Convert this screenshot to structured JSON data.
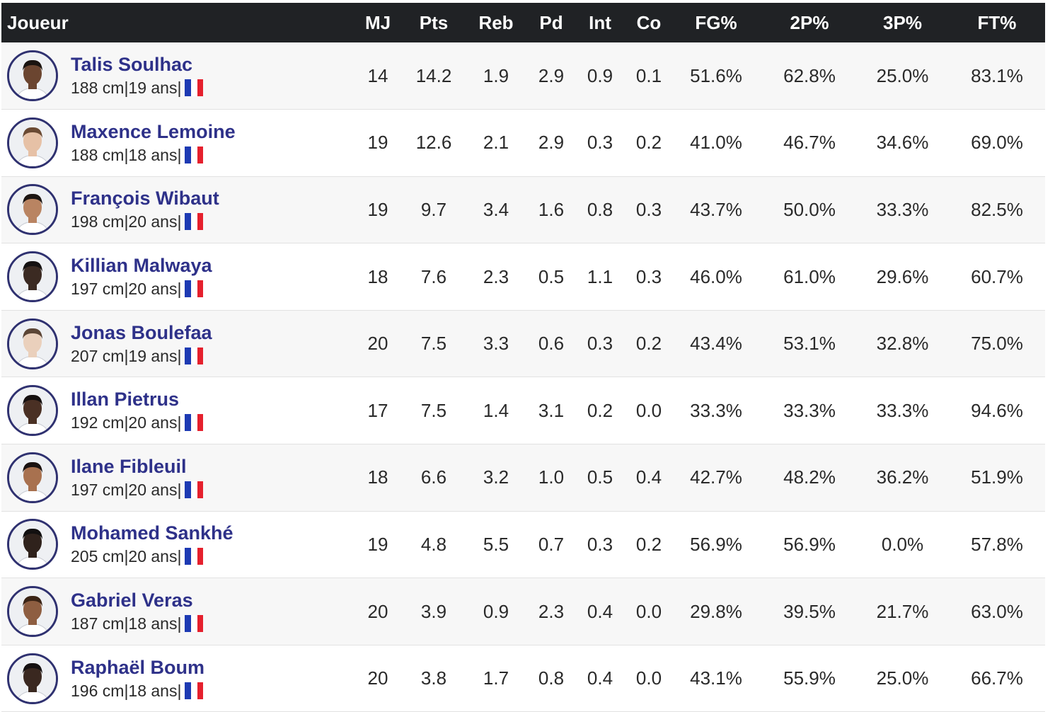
{
  "table": {
    "headers": [
      "Joueur",
      "MJ",
      "Pts",
      "Reb",
      "Pd",
      "Int",
      "Co",
      "FG%",
      "2P%",
      "3P%",
      "FT%"
    ],
    "separator": "|",
    "colors": {
      "header_bg": "#202225",
      "name": "#2e3189",
      "flag_blue": "#1d3ab3",
      "flag_white": "#ffffff",
      "flag_red": "#e5202d"
    },
    "rows": [
      {
        "name": "Talis Soulhac",
        "height": "188 cm",
        "age": "19 ans",
        "skin": "#6b4530",
        "hair": "#1a1410",
        "icon": "france-flag-icon",
        "stats": [
          "14",
          "14.2",
          "1.9",
          "2.9",
          "0.9",
          "0.1",
          "51.6%",
          "62.8%",
          "25.0%",
          "83.1%"
        ]
      },
      {
        "name": "Maxence Lemoine",
        "height": "188 cm",
        "age": "18 ans",
        "skin": "#e6c1a6",
        "hair": "#6a4a33",
        "icon": "france-flag-icon",
        "stats": [
          "19",
          "12.6",
          "2.1",
          "2.9",
          "0.3",
          "0.2",
          "41.0%",
          "46.7%",
          "34.6%",
          "69.0%"
        ]
      },
      {
        "name": "François Wibaut",
        "height": "198 cm",
        "age": "20 ans",
        "skin": "#b98462",
        "hair": "#1c1512",
        "icon": "france-flag-icon",
        "stats": [
          "19",
          "9.7",
          "3.4",
          "1.6",
          "0.8",
          "0.3",
          "43.7%",
          "50.0%",
          "33.3%",
          "82.5%"
        ]
      },
      {
        "name": "Killian Malwaya",
        "height": "197 cm",
        "age": "20 ans",
        "skin": "#3b2a22",
        "hair": "#151111",
        "icon": "france-flag-icon",
        "stats": [
          "18",
          "7.6",
          "2.3",
          "0.5",
          "1.1",
          "0.3",
          "46.0%",
          "61.0%",
          "29.6%",
          "60.7%"
        ]
      },
      {
        "name": "Jonas Boulefaa",
        "height": "207 cm",
        "age": "19 ans",
        "skin": "#ead0bc",
        "hair": "#5b4535",
        "icon": "france-flag-icon",
        "stats": [
          "20",
          "7.5",
          "3.3",
          "0.6",
          "0.3",
          "0.2",
          "43.4%",
          "53.1%",
          "32.8%",
          "75.0%"
        ]
      },
      {
        "name": "Illan Pietrus",
        "height": "192 cm",
        "age": "20 ans",
        "skin": "#4a3024",
        "hair": "#151010",
        "icon": "france-flag-icon",
        "stats": [
          "17",
          "7.5",
          "1.4",
          "3.1",
          "0.2",
          "0.0",
          "33.3%",
          "33.3%",
          "33.3%",
          "94.6%"
        ]
      },
      {
        "name": "Ilane Fibleuil",
        "height": "197 cm",
        "age": "20 ans",
        "skin": "#a8714f",
        "hair": "#1a1210",
        "icon": "france-flag-icon",
        "stats": [
          "18",
          "6.6",
          "3.2",
          "1.0",
          "0.5",
          "0.4",
          "42.7%",
          "48.2%",
          "36.2%",
          "51.9%"
        ]
      },
      {
        "name": "Mohamed Sankhé",
        "height": "205 cm",
        "age": "20 ans",
        "skin": "#2f221c",
        "hair": "#121010",
        "icon": "france-flag-icon",
        "stats": [
          "19",
          "4.8",
          "5.5",
          "0.7",
          "0.3",
          "0.2",
          "56.9%",
          "56.9%",
          "0.0%",
          "57.8%"
        ]
      },
      {
        "name": "Gabriel Veras",
        "height": "187 cm",
        "age": "18 ans",
        "skin": "#8e5e41",
        "hair": "#3a2416",
        "icon": "france-flag-icon",
        "stats": [
          "20",
          "3.9",
          "0.9",
          "2.3",
          "0.4",
          "0.0",
          "29.8%",
          "39.5%",
          "21.7%",
          "63.0%"
        ]
      },
      {
        "name": "Raphaël Boum",
        "height": "196 cm",
        "age": "18 ans",
        "skin": "#3a2820",
        "hair": "#151111",
        "icon": "france-flag-icon",
        "stats": [
          "20",
          "3.8",
          "1.7",
          "0.8",
          "0.4",
          "0.0",
          "43.1%",
          "55.9%",
          "25.0%",
          "66.7%"
        ]
      }
    ]
  }
}
